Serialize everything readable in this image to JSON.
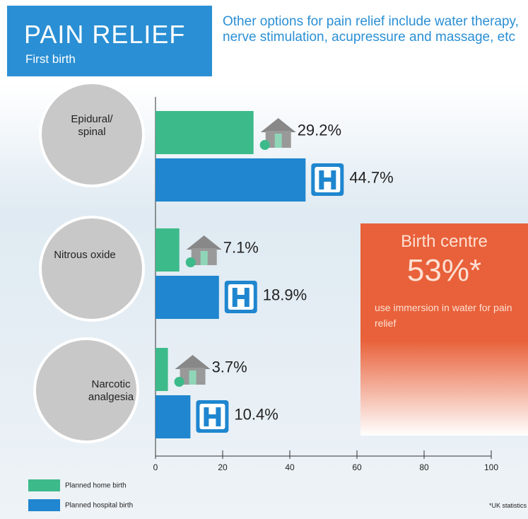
{
  "header": {
    "title": "PAIN RELIEF",
    "subtitle": "First birth",
    "note": "Other options for pain relief include water therapy, nerve stimulation, acupressure and massage, etc"
  },
  "chart_data": {
    "type": "bar",
    "orientation": "horizontal",
    "categories": [
      "Epidural/ spinal",
      "Nitrous oxide",
      "Narcotic analgesia"
    ],
    "series": [
      {
        "name": "Planned home birth",
        "color": "#3dba8a",
        "values": [
          29.2,
          7.1,
          3.7
        ],
        "value_labels": [
          "29.2%",
          "7.1%",
          "3.7%"
        ]
      },
      {
        "name": "Planned hospital birth",
        "color": "#1f86cf",
        "values": [
          44.7,
          18.9,
          10.4
        ],
        "value_labels": [
          "44.7%",
          "18.9%",
          "10.4%"
        ]
      }
    ],
    "xlim": [
      0,
      100
    ],
    "xticks": [
      0,
      20,
      40,
      60,
      80,
      100
    ]
  },
  "callout": {
    "title": "Birth centre",
    "value": "53%*",
    "text": "use immersion in water for pain relief"
  },
  "footnote": "*UK statistics"
}
